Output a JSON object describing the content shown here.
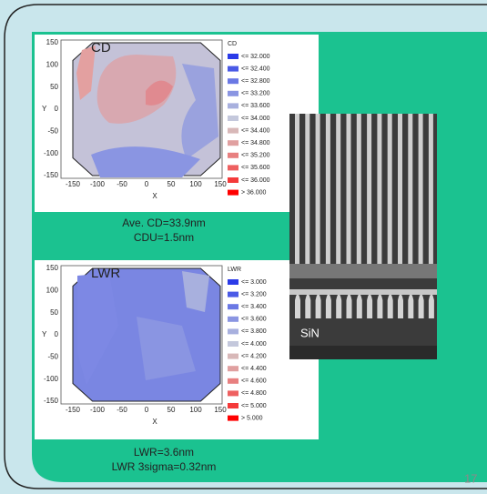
{
  "cd_map": {
    "title": "CD",
    "legend_title": "CD",
    "x_label": "X",
    "y_label": "Y",
    "x_ticks": [
      -150,
      -100,
      -50,
      0,
      50,
      100,
      150
    ],
    "y_ticks": [
      150,
      100,
      50,
      0,
      -50,
      -100,
      -150
    ],
    "legend": [
      "<= 32.000",
      "<= 32.400",
      "<= 32.800",
      "<= 33.200",
      "<= 33.600",
      "<= 34.000",
      "<= 34.400",
      "<= 34.800",
      "<= 35.200",
      "<= 35.600",
      "<= 36.000",
      "> 36.000"
    ]
  },
  "cd_caption": [
    "Ave. CD=33.9nm",
    "CDU=1.5nm"
  ],
  "lwr_map": {
    "title": "LWR",
    "legend_title": "LWR",
    "x_label": "X",
    "y_label": "Y",
    "x_ticks": [
      -150,
      -100,
      -50,
      0,
      50,
      100,
      150
    ],
    "y_ticks": [
      150,
      100,
      50,
      0,
      -50,
      -100,
      -150
    ],
    "legend": [
      "<= 3.000",
      "<= 3.200",
      "<= 3.400",
      "<= 3.600",
      "<= 3.800",
      "<= 4.000",
      "<= 4.200",
      "<= 4.400",
      "<= 4.600",
      "<= 4.800",
      "<= 5.000",
      "> 5.000"
    ]
  },
  "lwr_caption": [
    "LWR=3.6nm",
    "LWR 3sigma=0.32nm"
  ],
  "sem_label": "SiN",
  "page_number": "17"
}
